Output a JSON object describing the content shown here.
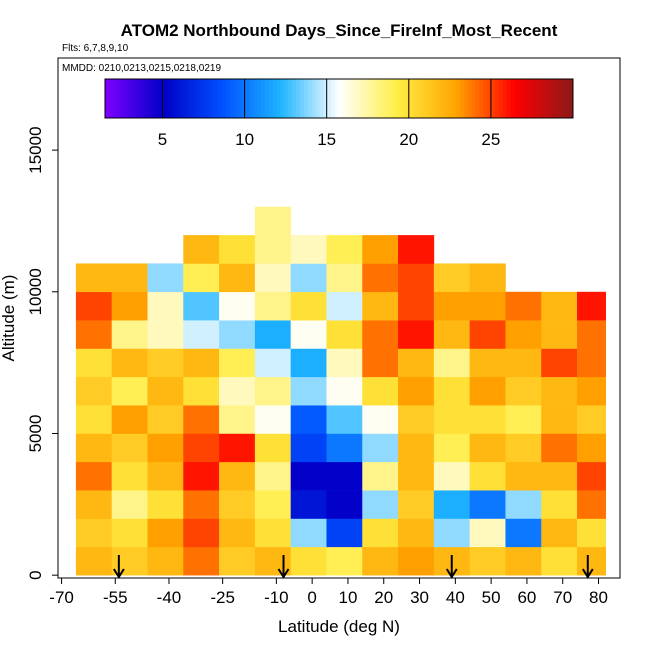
{
  "chart_data": {
    "type": "heatmap",
    "title": "ATOM2 Northbound Days_Since_FireInf_Most_Recent",
    "flights_note": "Flts: 6,7,8,9,10",
    "dates_note": "MMDD: 0210,0213,0215,0218,0219",
    "x_label": "Latitude (deg N)",
    "y_label": "Altitude (m)",
    "xlim": [
      -71,
      86
    ],
    "ylim": [
      -100,
      18250
    ],
    "xticks": [
      -70,
      -55,
      -40,
      -25,
      -10,
      0,
      10,
      20,
      30,
      40,
      50,
      60,
      70,
      80
    ],
    "yticks": [
      0,
      5000,
      10000,
      15000
    ],
    "x_edges": [
      -66,
      -56,
      -46,
      -36,
      -26,
      -16,
      -6,
      4,
      14,
      24,
      34,
      44,
      54,
      64,
      74,
      82
    ],
    "y_edges": [
      0,
      1000,
      2000,
      3000,
      4000,
      5000,
      6000,
      7000,
      8000,
      9000,
      10000,
      11000,
      12000,
      13000
    ],
    "values": [
      [
        22,
        21,
        22,
        24,
        21,
        22,
        20,
        19,
        22,
        23,
        22,
        21,
        22,
        20,
        22
      ],
      [
        21,
        20,
        23,
        25,
        22,
        20,
        14,
        8,
        20,
        22,
        14,
        17,
        10,
        22,
        20
      ],
      [
        22,
        18,
        20,
        24,
        21,
        19,
        6,
        5,
        14,
        21,
        12,
        10,
        14,
        20,
        24
      ],
      [
        24,
        20,
        22,
        26,
        22,
        18,
        5,
        5,
        18,
        22,
        17,
        20,
        22,
        22,
        25
      ],
      [
        22,
        21,
        23,
        25,
        26,
        20,
        8,
        10,
        14,
        22,
        19,
        22,
        21,
        24,
        23
      ],
      [
        20,
        23,
        21,
        24,
        18,
        16,
        9,
        13,
        16,
        21,
        20,
        20,
        19,
        22,
        21
      ],
      [
        21,
        19,
        22,
        20,
        17,
        18,
        14,
        16,
        20,
        23,
        20,
        23,
        21,
        22,
        23
      ],
      [
        20,
        22,
        21,
        22,
        19,
        15,
        12,
        17,
        24,
        22,
        18,
        22,
        22,
        25,
        24
      ],
      [
        24,
        18,
        17,
        15,
        14,
        12,
        16,
        20,
        24,
        26,
        22,
        25,
        23,
        22,
        24
      ],
      [
        25,
        23,
        17,
        13,
        16,
        18,
        20,
        15,
        22,
        25,
        23,
        23,
        24,
        22,
        26
      ],
      [
        22,
        22,
        14,
        19,
        22,
        17,
        14,
        18,
        24,
        25,
        21,
        22,
        null,
        null,
        null
      ],
      [
        null,
        null,
        null,
        22,
        20,
        18,
        17,
        19,
        23,
        26,
        null,
        null,
        null,
        null,
        null
      ],
      [
        null,
        null,
        null,
        null,
        null,
        18,
        null,
        null,
        null,
        null,
        null,
        null,
        null,
        null,
        null
      ]
    ],
    "clim": [
      1.5,
      30
    ],
    "cticks": [
      5,
      10,
      15,
      20,
      25
    ],
    "colorscale": [
      "#7f00ff",
      "#0000c8",
      "#0050ff",
      "#1eb4ff",
      "#ffffff",
      "#ffee44",
      "#ffa500",
      "#ff0000",
      "#8b1a1a"
    ],
    "arrow_latitudes": [
      -54,
      -8,
      39,
      77
    ]
  }
}
